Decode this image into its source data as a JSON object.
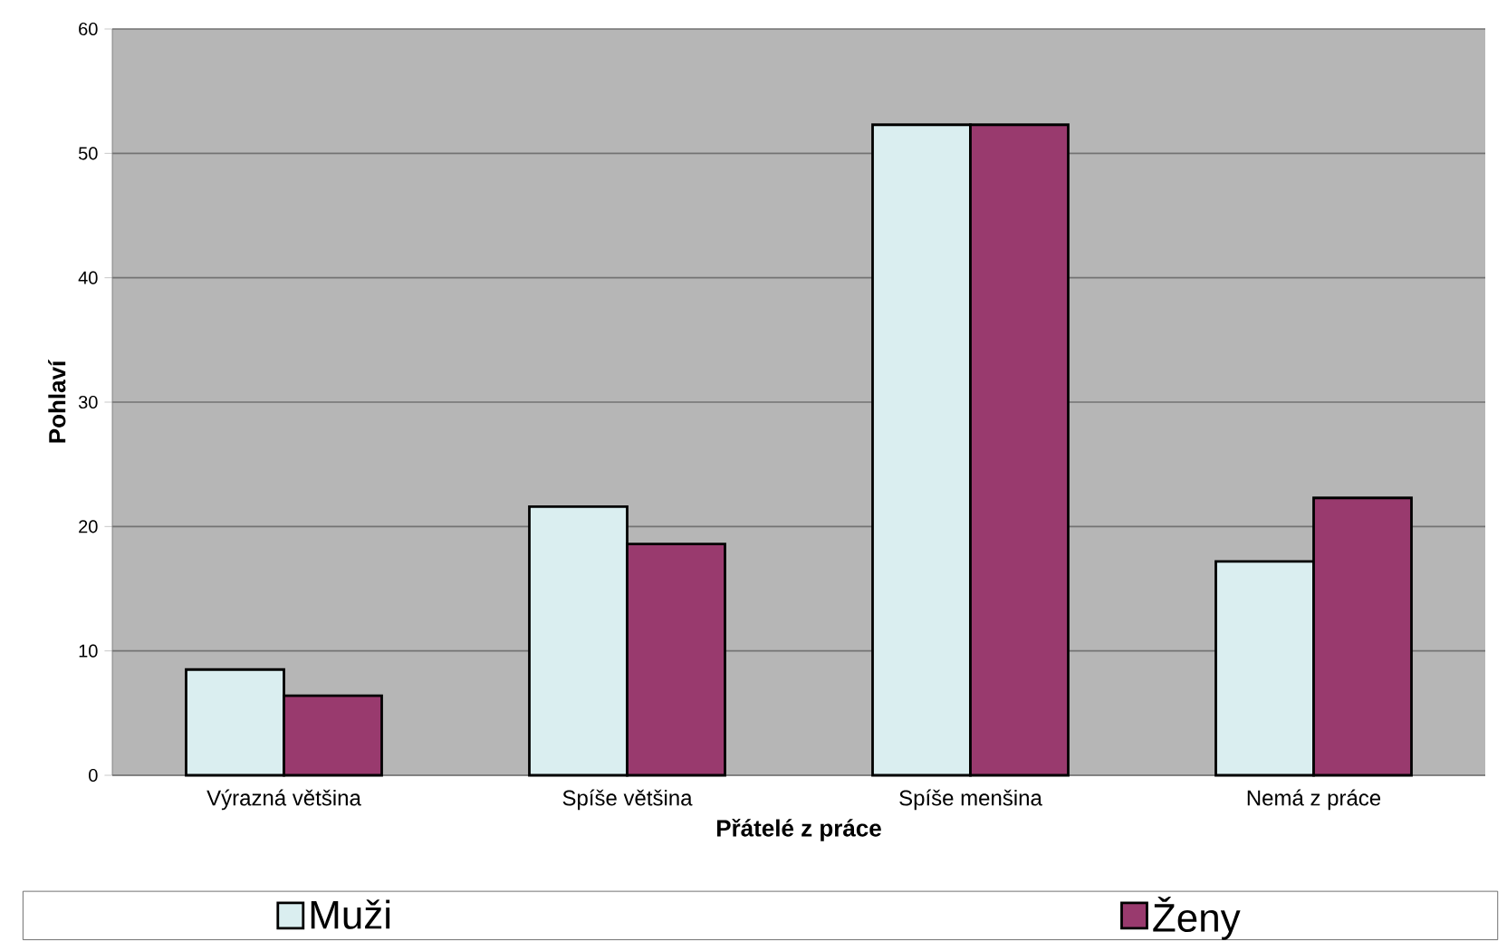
{
  "chart_data": {
    "type": "bar",
    "xlabel": "Přátelé z práce",
    "ylabel": "Pohlaví",
    "categories": [
      "Výrazná většina",
      "Spíše většina",
      "Spíše menšina",
      "Nemá z práce"
    ],
    "series": [
      {
        "name": "Muži",
        "color": "#daeef0",
        "values": [
          8.5,
          21.6,
          52.3,
          17.2
        ]
      },
      {
        "name": "Ženy",
        "color": "#993a6e",
        "values": [
          6.4,
          18.6,
          52.3,
          22.3
        ]
      }
    ],
    "ylim": [
      0,
      60
    ],
    "yticks": [
      0,
      10,
      20,
      30,
      40,
      50,
      60
    ],
    "grid": "y",
    "legend": "bottom"
  }
}
